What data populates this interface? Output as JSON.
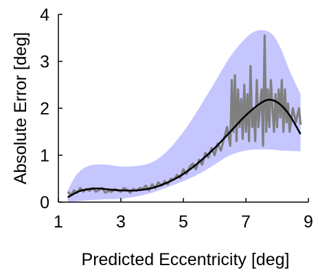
{
  "chart_data": {
    "type": "line",
    "xlabel": "Predicted Eccentricity [deg]",
    "ylabel": "Absolute Error [deg]",
    "xlim": [
      1,
      9
    ],
    "ylim": [
      0,
      4
    ],
    "xticks": [
      1,
      3,
      5,
      7,
      9
    ],
    "yticks": [
      0,
      1,
      2,
      3,
      4
    ],
    "grid": false,
    "legend": "none",
    "colors": {
      "band": "#c6c6ff",
      "fit": "#000000",
      "noisy": "#7f7f7f",
      "axis": "#000000"
    },
    "band": {
      "x": [
        1.3,
        1.6,
        2.0,
        2.5,
        3.0,
        3.5,
        4.0,
        4.5,
        5.0,
        5.5,
        6.0,
        6.5,
        7.0,
        7.4,
        7.8,
        8.1,
        8.4,
        8.75
      ],
      "upper": [
        0.25,
        0.6,
        0.78,
        0.8,
        0.76,
        0.77,
        0.85,
        1.1,
        1.5,
        2.0,
        2.55,
        3.1,
        3.5,
        3.66,
        3.6,
        3.3,
        2.8,
        2.3
      ],
      "lower": [
        0.0,
        0.02,
        0.04,
        0.06,
        0.07,
        0.12,
        0.2,
        0.32,
        0.45,
        0.6,
        0.8,
        1.0,
        1.1,
        1.12,
        1.12,
        1.1,
        1.09,
        1.08
      ]
    },
    "series": [
      {
        "type": "line",
        "x": [
          1.3,
          1.5,
          1.7,
          2.0,
          2.3,
          2.6,
          3.0,
          3.5,
          4.0,
          4.5,
          5.0,
          5.5,
          6.0,
          6.5,
          7.0,
          7.5,
          7.8,
          8.1,
          8.4,
          8.75
        ],
        "y": [
          0.1,
          0.18,
          0.24,
          0.28,
          0.29,
          0.27,
          0.25,
          0.25,
          0.3,
          0.42,
          0.6,
          0.85,
          1.15,
          1.5,
          1.85,
          2.12,
          2.18,
          2.08,
          1.85,
          1.45
        ]
      },
      {
        "type": "line",
        "x": [
          1.3,
          1.4,
          1.5,
          1.6,
          1.7,
          1.8,
          1.9,
          2.0,
          2.1,
          2.2,
          2.3,
          2.4,
          2.5,
          2.6,
          2.7,
          2.8,
          2.9,
          3.0,
          3.1,
          3.2,
          3.3,
          3.4,
          3.5,
          3.6,
          3.7,
          3.8,
          3.9,
          4.0,
          4.1,
          4.2,
          4.3,
          4.4,
          4.5,
          4.6,
          4.7,
          4.8,
          4.9,
          5.0,
          5.1,
          5.2,
          5.3,
          5.4,
          5.5,
          5.6,
          5.7,
          5.8,
          5.9,
          6.0,
          6.1,
          6.2,
          6.3,
          6.4,
          6.5,
          6.55,
          6.6,
          6.65,
          6.7,
          6.75,
          6.8,
          6.85,
          6.9,
          6.95,
          7.0,
          7.05,
          7.1,
          7.15,
          7.2,
          7.25,
          7.3,
          7.35,
          7.4,
          7.45,
          7.5,
          7.55,
          7.6,
          7.65,
          7.7,
          7.75,
          7.8,
          7.85,
          7.9,
          7.95,
          8.0,
          8.05,
          8.1,
          8.15,
          8.2,
          8.25,
          8.3,
          8.35,
          8.4,
          8.5,
          8.6,
          8.7,
          8.75
        ],
        "y": [
          0.22,
          0.15,
          0.25,
          0.2,
          0.3,
          0.22,
          0.28,
          0.24,
          0.3,
          0.22,
          0.26,
          0.3,
          0.2,
          0.24,
          0.22,
          0.28,
          0.25,
          0.22,
          0.3,
          0.26,
          0.2,
          0.28,
          0.24,
          0.3,
          0.28,
          0.35,
          0.25,
          0.38,
          0.3,
          0.42,
          0.35,
          0.45,
          0.38,
          0.5,
          0.48,
          0.58,
          0.52,
          0.7,
          0.6,
          0.75,
          0.82,
          0.7,
          0.9,
          0.8,
          1.05,
          0.95,
          1.15,
          1.0,
          1.25,
          1.1,
          1.35,
          1.6,
          1.2,
          2.6,
          1.5,
          2.7,
          1.3,
          2.4,
          1.6,
          2.2,
          1.35,
          2.5,
          1.5,
          2.3,
          1.3,
          2.9,
          1.6,
          2.0,
          1.3,
          2.6,
          1.6,
          2.0,
          2.4,
          1.2,
          3.55,
          1.5,
          2.4,
          1.6,
          2.6,
          2.0,
          1.5,
          2.3,
          1.6,
          2.4,
          1.8,
          2.6,
          1.5,
          2.4,
          1.7,
          2.1,
          1.5,
          2.0,
          1.7,
          2.0,
          1.65
        ]
      }
    ]
  }
}
